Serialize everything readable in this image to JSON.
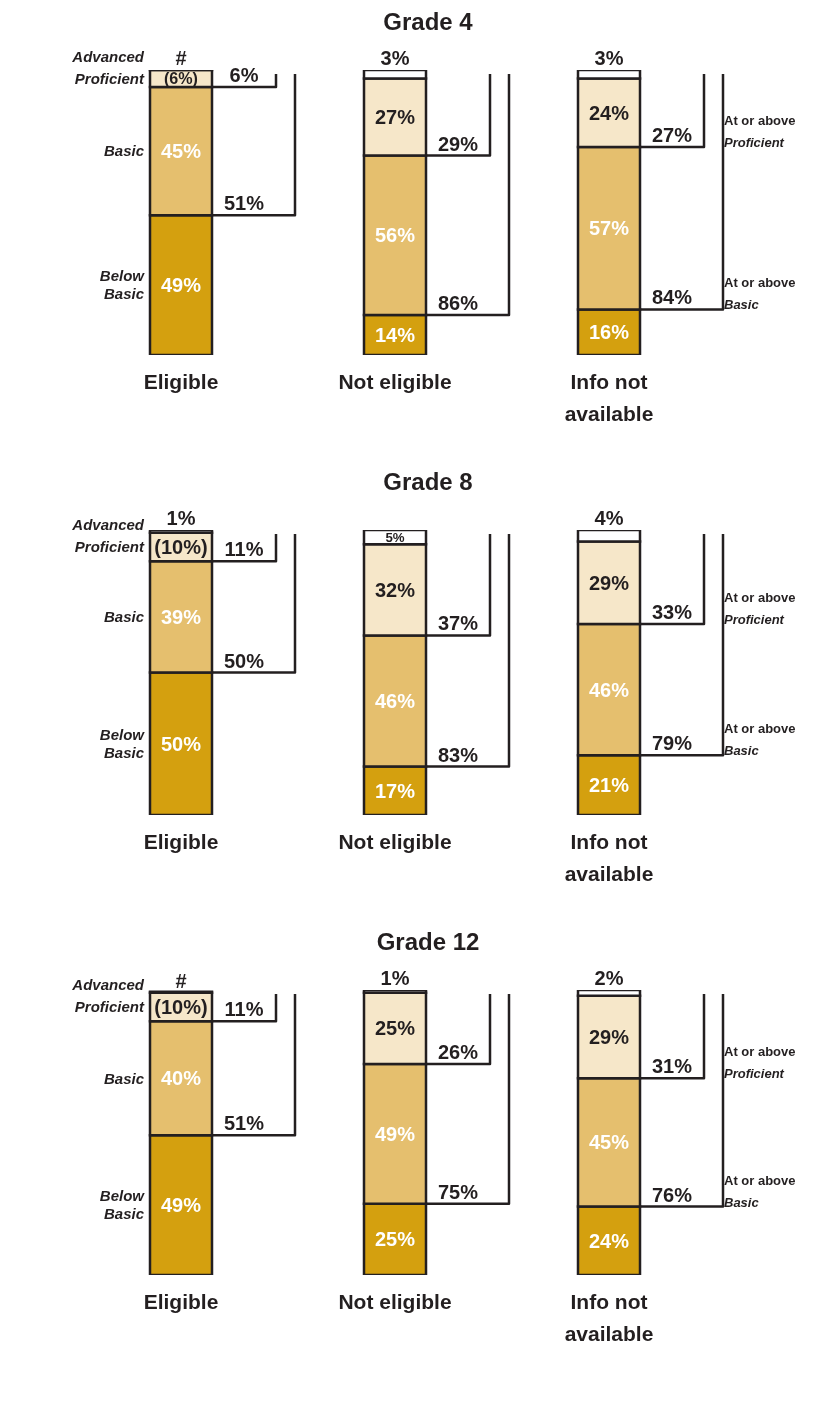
{
  "chart_data": [
    {
      "type": "bar",
      "title": "Grade 4",
      "stacked": true,
      "categories": [
        "Eligible",
        "Not eligible",
        "Info not available"
      ],
      "ylim": [
        0,
        100
      ],
      "tick_labels": "x",
      "series": [
        {
          "name": "Below Basic",
          "color": "#d4a00f",
          "values": [
            49,
            14,
            16
          ],
          "value_labels": [
            "49%",
            "14%",
            "16%"
          ]
        },
        {
          "name": "Basic",
          "color": "#e5bf6e",
          "values": [
            45,
            56,
            57
          ],
          "value_labels": [
            "45%",
            "56%",
            "57%"
          ]
        },
        {
          "name": "Proficient",
          "color": "#f6e7c9",
          "values": [
            6,
            27,
            24
          ],
          "value_labels": [
            "(6%)",
            "27%",
            "24%"
          ]
        },
        {
          "name": "Advanced",
          "color": "#ffffff",
          "values": [
            0,
            3,
            3
          ],
          "value_labels": [
            "#",
            "3%",
            "3%"
          ]
        }
      ],
      "annotations": [
        "At or above Proficient",
        "At or above Basic",
        {
          "text": "6%",
          "x": "Eligible",
          "y": 94
        },
        {
          "text": "51%",
          "x": "Eligible",
          "y": 49
        },
        {
          "text": "29%",
          "x": "Not eligible",
          "y": 70
        },
        {
          "text": "86%",
          "x": "Not eligible",
          "y": 14
        },
        {
          "text": "27%",
          "x": "Info not available",
          "y": 73
        },
        {
          "text": "84%",
          "x": "Info not available",
          "y": 16
        }
      ]
    },
    {
      "type": "bar",
      "title": "Grade 8",
      "stacked": true,
      "categories": [
        "Eligible",
        "Not eligible",
        "Info not available"
      ],
      "ylim": [
        0,
        100
      ],
      "tick_labels": "x",
      "series": [
        {
          "name": "Below Basic",
          "color": "#d4a00f",
          "values": [
            50,
            17,
            21
          ],
          "value_labels": [
            "50%",
            "17%",
            "21%"
          ]
        },
        {
          "name": "Basic",
          "color": "#e5bf6e",
          "values": [
            39,
            46,
            46
          ],
          "value_labels": [
            "39%",
            "46%",
            "46%"
          ]
        },
        {
          "name": "Proficient",
          "color": "#f6e7c9",
          "values": [
            10,
            32,
            29
          ],
          "value_labels": [
            "(10%)",
            "32%",
            "29%"
          ]
        },
        {
          "name": "Advanced",
          "color": "#ffffff",
          "values": [
            1,
            5,
            4
          ],
          "value_labels": [
            "1%",
            "5%",
            "4%"
          ]
        }
      ],
      "annotations": [
        "At or above Proficient",
        "At or above Basic",
        {
          "text": "11%",
          "x": "Eligible",
          "y": 89
        },
        {
          "text": "50%",
          "x": "Eligible",
          "y": 50
        },
        {
          "text": "37%",
          "x": "Not eligible",
          "y": 63
        },
        {
          "text": "83%",
          "x": "Not eligible",
          "y": 17
        },
        {
          "text": "33%",
          "x": "Info not available",
          "y": 67
        },
        {
          "text": "79%",
          "x": "Info not available",
          "y": 21
        }
      ]
    },
    {
      "type": "bar",
      "title": "Grade 12",
      "stacked": true,
      "categories": [
        "Eligible",
        "Not eligible",
        "Info not available"
      ],
      "ylim": [
        0,
        100
      ],
      "tick_labels": "x",
      "series": [
        {
          "name": "Below Basic",
          "color": "#d4a00f",
          "values": [
            49,
            25,
            24
          ],
          "value_labels": [
            "49%",
            "25%",
            "24%"
          ]
        },
        {
          "name": "Basic",
          "color": "#e5bf6e",
          "values": [
            40,
            49,
            45
          ],
          "value_labels": [
            "40%",
            "49%",
            "45%"
          ]
        },
        {
          "name": "Proficient",
          "color": "#f6e7c9",
          "values": [
            10,
            25,
            29
          ],
          "value_labels": [
            "(10%)",
            "25%",
            "29%"
          ]
        },
        {
          "name": "Advanced",
          "color": "#ffffff",
          "values": [
            0,
            1,
            2
          ],
          "value_labels": [
            "#",
            "1%",
            "2%"
          ]
        }
      ],
      "annotations": [
        "At or above Proficient",
        "At or above Basic",
        {
          "text": "11%",
          "x": "Eligible",
          "y": 89
        },
        {
          "text": "51%",
          "x": "Eligible",
          "y": 49
        },
        {
          "text": "26%",
          "x": "Not eligible",
          "y": 74
        },
        {
          "text": "75%",
          "x": "Not eligible",
          "y": 25
        },
        {
          "text": "31%",
          "x": "Info not available",
          "y": 69
        },
        {
          "text": "76%",
          "x": "Info not available",
          "y": 24
        }
      ]
    }
  ]
}
